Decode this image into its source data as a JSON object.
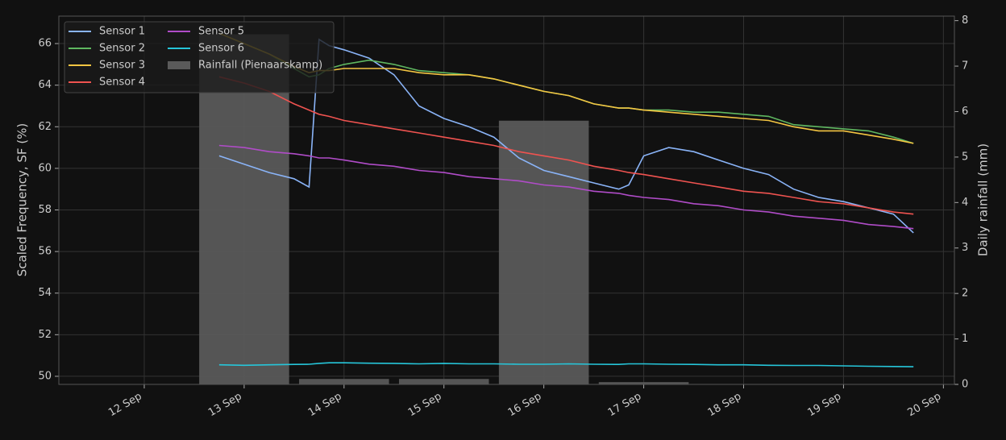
{
  "chart_data": {
    "type": "line",
    "y_label": "Scaled Frequency, SF (%)",
    "y2_label": "Daily rainfall (mm)",
    "grid": true,
    "legend": "upper left",
    "xlim": [
      11.145,
      20.11
    ],
    "xticks": [
      {
        "value": 12,
        "label": "12 Sep"
      },
      {
        "value": 13,
        "label": "13 Sep"
      },
      {
        "value": 14,
        "label": "14 Sep"
      },
      {
        "value": 15,
        "label": "15 Sep"
      },
      {
        "value": 16,
        "label": "16 Sep"
      },
      {
        "value": 17,
        "label": "17 Sep"
      },
      {
        "value": 18,
        "label": "18 Sep"
      },
      {
        "value": 19,
        "label": "19 Sep"
      },
      {
        "value": 20,
        "label": "20 Sep"
      }
    ],
    "ylim": [
      49.61,
      67.32
    ],
    "yticks": [
      50,
      52,
      54,
      56,
      58,
      60,
      62,
      64,
      66
    ],
    "y2lim": [
      0,
      8.1
    ],
    "y2ticks": [
      0,
      1,
      2,
      3,
      4,
      5,
      6,
      7,
      8
    ],
    "x": [
      12.75,
      13.0,
      13.25,
      13.5,
      13.65,
      13.75,
      13.85,
      14.0,
      14.25,
      14.5,
      14.75,
      15.0,
      15.25,
      15.5,
      15.75,
      16.0,
      16.25,
      16.5,
      16.75,
      16.85,
      17.0,
      17.25,
      17.5,
      17.75,
      18.0,
      18.25,
      18.5,
      18.75,
      19.0,
      19.25,
      19.5,
      19.7
    ],
    "series": [
      {
        "name": "Sensor 1",
        "color": "#8ab4f8",
        "values": [
          60.6,
          60.2,
          59.8,
          59.5,
          59.1,
          66.2,
          65.9,
          65.7,
          65.3,
          64.5,
          63.0,
          62.4,
          62.0,
          61.5,
          60.5,
          59.9,
          59.6,
          59.3,
          59.0,
          59.2,
          60.6,
          61.0,
          60.8,
          60.4,
          60.0,
          59.7,
          59.0,
          58.6,
          58.4,
          58.1,
          57.8,
          56.9
        ]
      },
      {
        "name": "Sensor 2",
        "color": "#5fb760",
        "values": [
          66.5,
          66.0,
          65.5,
          64.8,
          64.4,
          64.5,
          64.8,
          65.0,
          65.2,
          65.0,
          64.7,
          64.6,
          64.5,
          64.3,
          64.0,
          63.7,
          63.5,
          63.1,
          62.9,
          62.9,
          62.8,
          62.8,
          62.7,
          62.7,
          62.6,
          62.5,
          62.1,
          62.0,
          61.9,
          61.8,
          61.5,
          61.2
        ]
      },
      {
        "name": "Sensor 3",
        "color": "#f4c542",
        "values": [
          66.5,
          66.0,
          65.5,
          64.9,
          64.6,
          64.7,
          64.7,
          64.8,
          64.8,
          64.8,
          64.6,
          64.5,
          64.5,
          64.3,
          64.0,
          63.7,
          63.5,
          63.1,
          62.9,
          62.9,
          62.8,
          62.7,
          62.6,
          62.5,
          62.4,
          62.3,
          62.0,
          61.8,
          61.8,
          61.6,
          61.4,
          61.2
        ]
      },
      {
        "name": "Sensor 4",
        "color": "#ef5350",
        "values": [
          64.4,
          64.1,
          63.7,
          63.1,
          62.8,
          62.6,
          62.5,
          62.3,
          62.1,
          61.9,
          61.7,
          61.5,
          61.3,
          61.1,
          60.8,
          60.6,
          60.4,
          60.1,
          59.9,
          59.8,
          59.7,
          59.5,
          59.3,
          59.1,
          58.9,
          58.8,
          58.6,
          58.4,
          58.3,
          58.1,
          57.9,
          57.8
        ]
      },
      {
        "name": "Sensor 5",
        "color": "#b04cc8",
        "values": [
          61.1,
          61.0,
          60.8,
          60.7,
          60.6,
          60.5,
          60.5,
          60.4,
          60.2,
          60.1,
          59.9,
          59.8,
          59.6,
          59.5,
          59.4,
          59.2,
          59.1,
          58.9,
          58.8,
          58.7,
          58.6,
          58.5,
          58.3,
          58.2,
          58.0,
          57.9,
          57.7,
          57.6,
          57.5,
          57.3,
          57.2,
          57.1
        ]
      },
      {
        "name": "Sensor 6",
        "color": "#26c6da",
        "values": [
          50.55,
          50.53,
          50.55,
          50.57,
          50.58,
          50.62,
          50.65,
          50.65,
          50.63,
          50.62,
          50.6,
          50.62,
          50.6,
          50.6,
          50.58,
          50.58,
          50.6,
          50.58,
          50.57,
          50.6,
          50.6,
          50.58,
          50.57,
          50.55,
          50.55,
          50.53,
          50.52,
          50.52,
          50.5,
          50.48,
          50.47,
          50.46
        ]
      }
    ],
    "rainfall": {
      "name": "Rainfall (Pienaarskamp)",
      "type": "bar",
      "axis": "y2",
      "color": "#5a5a5a",
      "x": [
        13,
        14,
        15,
        16,
        17
      ],
      "values": [
        7.7,
        0.12,
        0.12,
        5.8,
        0.05
      ]
    }
  }
}
